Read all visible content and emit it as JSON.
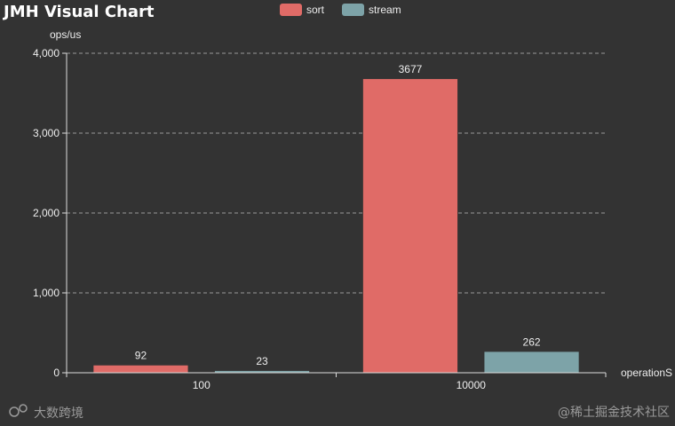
{
  "chart_data": {
    "type": "bar",
    "title": "JMH Visual Chart",
    "ylabel": "ops/us",
    "xlabel": "operationS",
    "categories": [
      "100",
      "10000"
    ],
    "series": [
      {
        "name": "sort",
        "color": "#e06b67",
        "values": [
          92,
          3677
        ]
      },
      {
        "name": "stream",
        "color": "#7da3a8",
        "values": [
          23,
          262
        ]
      }
    ],
    "ylim": [
      0,
      4000
    ],
    "yticks": [
      0,
      1000,
      2000,
      3000,
      4000
    ],
    "ytick_labels": [
      "0",
      "1,000",
      "2,000",
      "3,000",
      "4,000"
    ],
    "grid": true,
    "legend": "top-center"
  },
  "watermarks": {
    "left": "大数跨境",
    "right": "@稀土掘金技术社区"
  }
}
